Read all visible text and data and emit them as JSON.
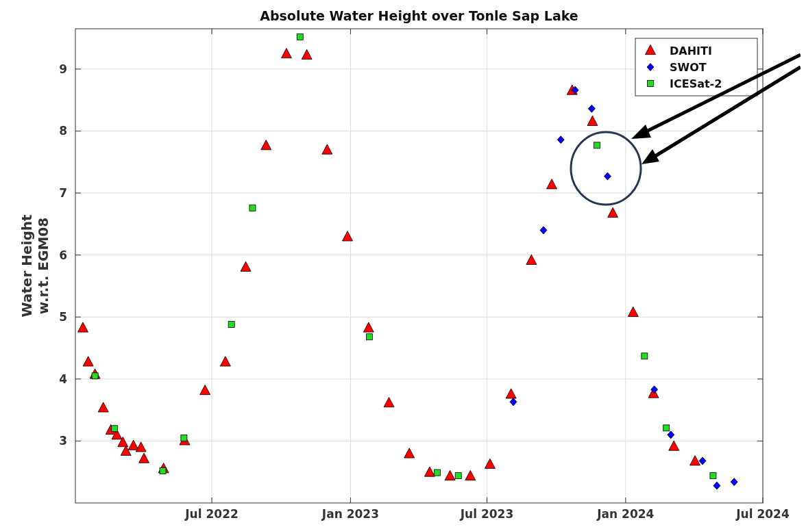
{
  "chart_data": {
    "type": "scatter",
    "title": "Absolute Water Height over Tonle Sap Lake",
    "ylabel": "Water Height\nw.r.t. EGM08",
    "xlim": [
      "2022-01-01",
      "2024-07-01"
    ],
    "xticks": [
      {
        "value": "2022-07-01",
        "label": "Jul 2022"
      },
      {
        "value": "2023-01-01",
        "label": "Jan 2023"
      },
      {
        "value": "2023-07-01",
        "label": "Jul 2023"
      },
      {
        "value": "2024-01-01",
        "label": "Jan 2024"
      },
      {
        "value": "2024-07-01",
        "label": "Jul 2024"
      }
    ],
    "ylim": [
      2,
      9.65
    ],
    "yticks": [
      3,
      4,
      5,
      6,
      7,
      8,
      9
    ],
    "grid": true,
    "legend": "top right",
    "series": [
      {
        "name": "DAHITI",
        "color": "#ff0000",
        "marker": "triangle",
        "x": [
          "2022-01-11",
          "2022-01-18",
          "2022-01-27",
          "2022-02-07",
          "2022-02-17",
          "2022-02-25",
          "2022-03-05",
          "2022-03-09",
          "2022-03-19",
          "2022-03-29",
          "2022-04-02",
          "2022-04-28",
          "2022-05-26",
          "2022-06-22",
          "2022-07-19",
          "2022-08-15",
          "2022-09-11",
          "2022-10-08",
          "2022-11-04",
          "2022-12-01",
          "2022-12-28",
          "2023-01-25",
          "2023-02-21",
          "2023-03-20",
          "2023-04-16",
          "2023-05-13",
          "2023-06-09",
          "2023-07-05",
          "2023-08-02",
          "2023-08-29",
          "2023-09-25",
          "2023-10-22",
          "2023-11-18",
          "2023-12-15",
          "2024-01-11",
          "2024-02-07",
          "2024-03-05",
          "2024-04-02"
        ],
        "values": [
          4.82,
          4.27,
          4.07,
          3.53,
          3.17,
          3.09,
          2.97,
          2.83,
          2.92,
          2.89,
          2.71,
          2.55,
          3.0,
          3.81,
          4.27,
          5.8,
          7.76,
          9.24,
          9.22,
          7.69,
          6.29,
          4.82,
          3.61,
          2.79,
          2.49,
          2.43,
          2.43,
          2.62,
          3.75,
          5.91,
          7.13,
          8.65,
          8.15,
          6.67,
          5.07,
          3.76,
          2.91,
          2.67
        ]
      },
      {
        "name": "SWOT",
        "color": "#0000ff",
        "marker": "diamond",
        "x": [
          "2023-08-05",
          "2023-09-14",
          "2023-10-07",
          "2023-10-26",
          "2023-11-17",
          "2023-12-08",
          "2024-02-08",
          "2024-03-01",
          "2024-04-12",
          "2024-05-01",
          "2024-05-24"
        ],
        "values": [
          3.63,
          6.4,
          7.86,
          8.66,
          8.36,
          7.27,
          3.83,
          3.1,
          2.68,
          2.28,
          2.34
        ]
      },
      {
        "name": "ICESat-2",
        "color": "#22dd22",
        "marker": "square",
        "x": [
          "2022-01-27",
          "2022-02-22",
          "2022-04-27",
          "2022-05-25",
          "2022-07-27",
          "2022-08-24",
          "2022-10-26",
          "2023-01-26",
          "2023-04-26",
          "2023-05-24",
          "2023-11-24",
          "2024-01-26",
          "2024-02-24",
          "2024-04-26"
        ],
        "values": [
          4.05,
          3.2,
          2.52,
          3.05,
          4.88,
          6.76,
          9.52,
          4.68,
          2.49,
          2.44,
          7.77,
          4.37,
          3.21,
          2.44
        ]
      }
    ]
  }
}
